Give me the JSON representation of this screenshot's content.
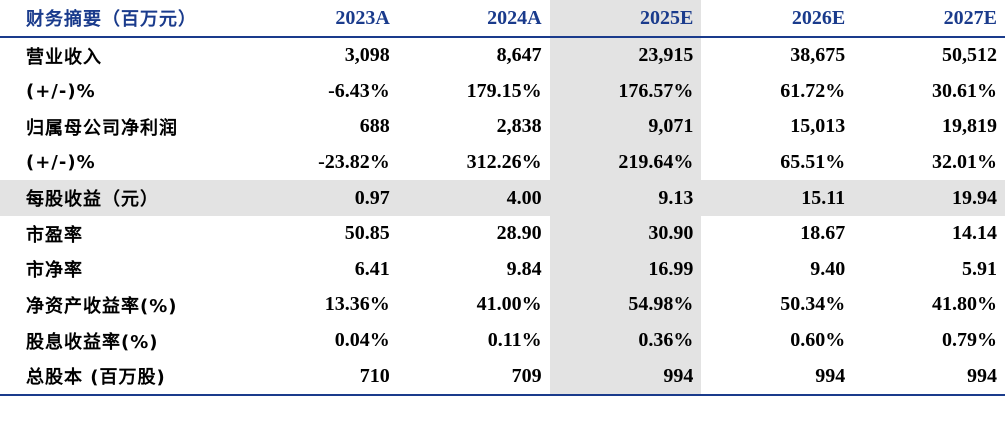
{
  "header": {
    "label": "财务摘要（百万元）",
    "years": [
      "2023A",
      "2024A",
      "2025E",
      "2026E",
      "2027E"
    ]
  },
  "highlight": {
    "column_index": 2,
    "row_label": "每股收益（元）",
    "color": "#e3e3e3",
    "header_color": "#1a3b8c"
  },
  "rows": [
    {
      "label": "营业收入",
      "values": [
        "3,098",
        "8,647",
        "23,915",
        "38,675",
        "50,512"
      ]
    },
    {
      "label": "(+/-)%",
      "values": [
        "-6.43%",
        "179.15%",
        "176.57%",
        "61.72%",
        "30.61%"
      ]
    },
    {
      "label": "归属母公司净利润",
      "values": [
        "688",
        "2,838",
        "9,071",
        "15,013",
        "19,819"
      ]
    },
    {
      "label": "(+/-)%",
      "values": [
        "-23.82%",
        "312.26%",
        "219.64%",
        "65.51%",
        "32.01%"
      ]
    },
    {
      "label": "每股收益（元）",
      "values": [
        "0.97",
        "4.00",
        "9.13",
        "15.11",
        "19.94"
      ]
    },
    {
      "label": "市盈率",
      "values": [
        "50.85",
        "28.90",
        "30.90",
        "18.67",
        "14.14"
      ]
    },
    {
      "label": "市净率",
      "values": [
        "6.41",
        "9.84",
        "16.99",
        "9.40",
        "5.91"
      ]
    },
    {
      "label": "净资产收益率(%)",
      "values": [
        "13.36%",
        "41.00%",
        "54.98%",
        "50.34%",
        "41.80%"
      ]
    },
    {
      "label": "股息收益率(%)",
      "values": [
        "0.04%",
        "0.11%",
        "0.36%",
        "0.60%",
        "0.79%"
      ]
    },
    {
      "label": "总股本 (百万股)",
      "values": [
        "710",
        "709",
        "994",
        "994",
        "994"
      ]
    }
  ]
}
